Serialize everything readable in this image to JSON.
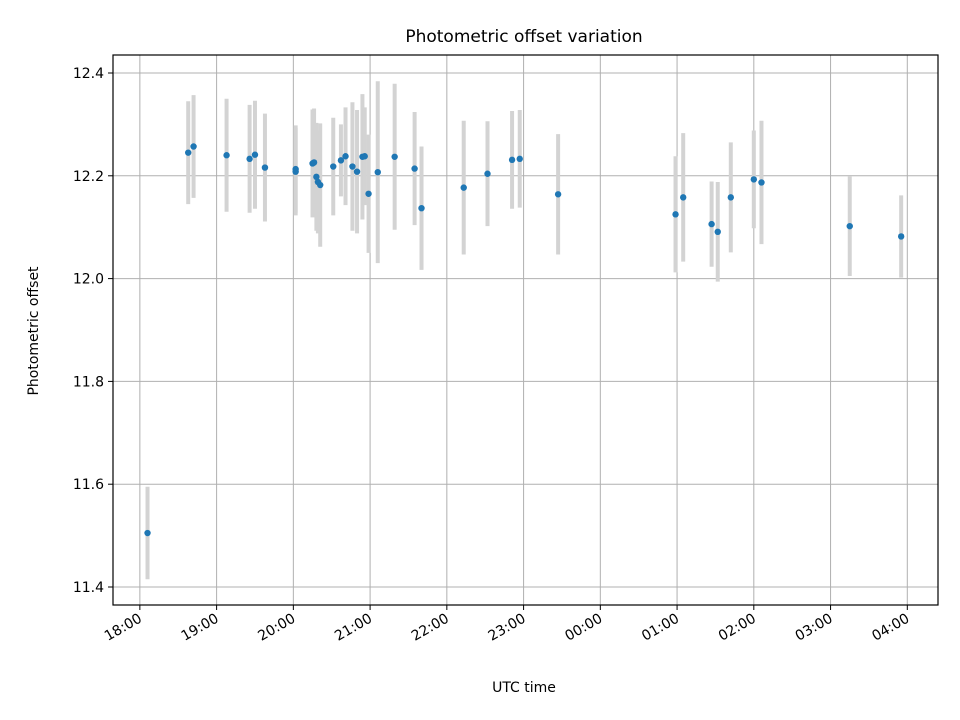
{
  "chart_data": {
    "type": "scatter",
    "title": "Photometric offset variation",
    "xlabel": "UTC time",
    "ylabel": "Photometric offset",
    "x_ticks": [
      "18:00",
      "19:00",
      "20:00",
      "21:00",
      "22:00",
      "23:00",
      "00:00",
      "01:00",
      "02:00",
      "03:00",
      "04:00"
    ],
    "x_tick_hours": [
      0,
      1,
      2,
      3,
      4,
      5,
      6,
      7,
      8,
      9,
      10
    ],
    "xlim_hours": [
      -0.35,
      10.4
    ],
    "y_ticks": [
      11.4,
      11.6,
      11.8,
      12.0,
      12.2,
      12.4
    ],
    "ylim": [
      11.365,
      12.435
    ],
    "grid": true,
    "colors": {
      "marker": "#1f77b4",
      "errorbar": "#d3d3d3",
      "grid": "#b0b0b0"
    },
    "points": [
      {
        "hours": 0.1,
        "y": 11.505,
        "err": 0.09
      },
      {
        "hours": 0.63,
        "y": 12.245,
        "err": 0.1
      },
      {
        "hours": 0.7,
        "y": 12.257,
        "err": 0.1
      },
      {
        "hours": 1.13,
        "y": 12.24,
        "err": 0.11
      },
      {
        "hours": 1.43,
        "y": 12.233,
        "err": 0.105
      },
      {
        "hours": 1.5,
        "y": 12.241,
        "err": 0.105
      },
      {
        "hours": 1.63,
        "y": 12.216,
        "err": 0.105
      },
      {
        "hours": 2.03,
        "y": 12.213,
        "err": 0.085
      },
      {
        "hours": 2.03,
        "y": 12.208,
        "err": 0.085
      },
      {
        "hours": 2.25,
        "y": 12.224,
        "err": 0.105
      },
      {
        "hours": 2.27,
        "y": 12.226,
        "err": 0.105
      },
      {
        "hours": 2.3,
        "y": 12.198,
        "err": 0.105
      },
      {
        "hours": 2.32,
        "y": 12.188,
        "err": 0.1
      },
      {
        "hours": 2.35,
        "y": 12.182,
        "err": 0.12
      },
      {
        "hours": 2.52,
        "y": 12.218,
        "err": 0.095
      },
      {
        "hours": 2.62,
        "y": 12.23,
        "err": 0.07
      },
      {
        "hours": 2.68,
        "y": 12.238,
        "err": 0.095
      },
      {
        "hours": 2.77,
        "y": 12.218,
        "err": 0.125
      },
      {
        "hours": 2.83,
        "y": 12.208,
        "err": 0.12
      },
      {
        "hours": 2.9,
        "y": 12.237,
        "err": 0.122
      },
      {
        "hours": 2.93,
        "y": 12.238,
        "err": 0.095
      },
      {
        "hours": 2.98,
        "y": 12.165,
        "err": 0.115
      },
      {
        "hours": 3.1,
        "y": 12.207,
        "err": 0.177
      },
      {
        "hours": 3.32,
        "y": 12.237,
        "err": 0.142
      },
      {
        "hours": 3.58,
        "y": 12.214,
        "err": 0.11
      },
      {
        "hours": 3.67,
        "y": 12.137,
        "err": 0.12
      },
      {
        "hours": 4.22,
        "y": 12.177,
        "err": 0.13
      },
      {
        "hours": 4.53,
        "y": 12.204,
        "err": 0.102
      },
      {
        "hours": 4.85,
        "y": 12.231,
        "err": 0.095
      },
      {
        "hours": 4.95,
        "y": 12.233,
        "err": 0.095
      },
      {
        "hours": 5.45,
        "y": 12.164,
        "err": 0.117
      },
      {
        "hours": 6.98,
        "y": 12.125,
        "err": 0.113
      },
      {
        "hours": 7.08,
        "y": 12.158,
        "err": 0.125
      },
      {
        "hours": 7.45,
        "y": 12.106,
        "err": 0.083
      },
      {
        "hours": 7.53,
        "y": 12.091,
        "err": 0.097
      },
      {
        "hours": 7.7,
        "y": 12.158,
        "err": 0.107
      },
      {
        "hours": 8.0,
        "y": 12.193,
        "err": 0.095
      },
      {
        "hours": 8.1,
        "y": 12.187,
        "err": 0.12
      },
      {
        "hours": 9.25,
        "y": 12.102,
        "err": 0.097
      },
      {
        "hours": 9.92,
        "y": 12.082,
        "err": 0.08
      }
    ]
  }
}
